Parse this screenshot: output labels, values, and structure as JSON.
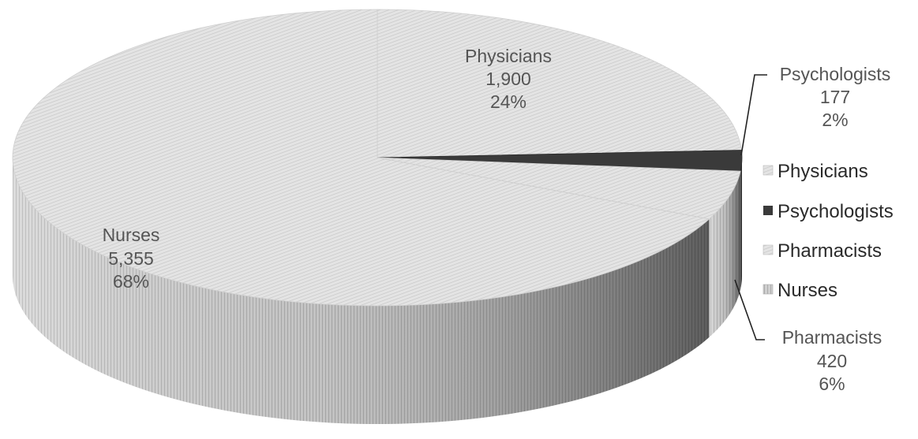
{
  "chart_data": {
    "type": "pie",
    "style": "3d",
    "start_angle_deg": 90,
    "direction": "clockwise",
    "slices": [
      {
        "label": "Physicians",
        "value": 1900,
        "value_text": "1,900",
        "percent": "24%",
        "color": "#dcdcdc"
      },
      {
        "label": "Psychologists",
        "value": 177,
        "value_text": "177",
        "percent": "2%",
        "color": "#3a3a3a"
      },
      {
        "label": "Pharmacists",
        "value": 420,
        "value_text": "420",
        "percent": "6%",
        "color": "#d4d4d4"
      },
      {
        "label": "Nurses",
        "value": 5355,
        "value_text": "5,355",
        "percent": "68%",
        "color": "#e2e2e2"
      }
    ],
    "legend": {
      "position": "right",
      "entries": [
        "Physicians",
        "Psychologists",
        "Pharmacists",
        "Nurses"
      ]
    },
    "title": ""
  }
}
